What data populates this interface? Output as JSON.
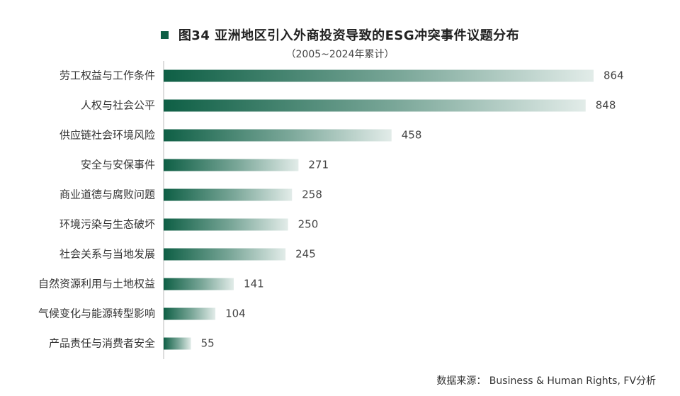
{
  "header": {
    "title": "图34  亚洲地区引入外商投资导致的ESG冲突事件议题分布",
    "subtitle": "（2005~2024年累计）"
  },
  "source": "数据来源：  Business & Human Rights, FV分析",
  "colors": {
    "bar_start": "#0e5f45",
    "bar_end": "#ffffff",
    "axis": "#bbbbbb"
  },
  "chart_data": {
    "type": "bar",
    "orientation": "horizontal",
    "categories": [
      "劳工权益与工作条件",
      "人权与社会公平",
      "供应链社会环境风险",
      "安全与安保事件",
      "商业道德与腐败问题",
      "环境污染与生态破坏",
      "社会关系与当地发展",
      "自然资源利用与土地权益",
      "气候变化与能源转型影响",
      "产品责任与消费者安全"
    ],
    "values": [
      864,
      848,
      458,
      271,
      258,
      250,
      245,
      141,
      104,
      55
    ],
    "title": "图34  亚洲地区引入外商投资导致的ESG冲突事件议题分布",
    "subtitle": "（2005~2024年累计）",
    "xlim": [
      0,
      864
    ],
    "grid": false
  }
}
